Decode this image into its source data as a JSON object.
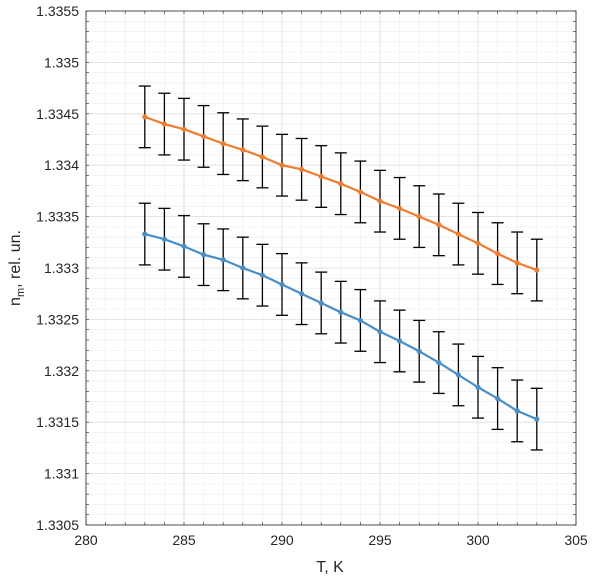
{
  "chart_data": {
    "type": "line",
    "title": "",
    "xlabel": "T, K",
    "ylabel_main": "n",
    "ylabel_sub": "m",
    "ylabel_rest": ", rel. un.",
    "xlim": [
      280,
      305
    ],
    "ylim": [
      1.3305,
      1.3355
    ],
    "xticks": [
      280,
      285,
      290,
      295,
      300,
      305
    ],
    "xtick_labels": [
      "280",
      "285",
      "290",
      "295",
      "300",
      "305"
    ],
    "yticks": [
      1.3305,
      1.331,
      1.3315,
      1.332,
      1.3325,
      1.333,
      1.3335,
      1.334,
      1.3345,
      1.335,
      1.3355
    ],
    "ytick_labels": [
      "1.3305",
      "1.331",
      "1.3315",
      "1.332",
      "1.3325",
      "1.333",
      "1.3335",
      "1.334",
      "1.3345",
      "1.335",
      "1.3355"
    ],
    "grid": true,
    "minor_grid": true,
    "x": [
      283,
      284,
      285,
      286,
      287,
      288,
      289,
      290,
      291,
      292,
      293,
      294,
      295,
      296,
      297,
      298,
      299,
      300,
      301,
      302,
      303
    ],
    "series": [
      {
        "color": "#ED7D31",
        "values": [
          1.33447,
          1.3344,
          1.33435,
          1.33428,
          1.33421,
          1.33415,
          1.33408,
          1.334,
          1.33396,
          1.33389,
          1.33382,
          1.33374,
          1.33365,
          1.33358,
          1.3335,
          1.33342,
          1.33333,
          1.33324,
          1.33314,
          1.33305,
          1.33298
        ],
        "error": 0.0003
      },
      {
        "color": "#4A8EC6",
        "values": [
          1.33333,
          1.33328,
          1.33321,
          1.33313,
          1.33308,
          1.333,
          1.33293,
          1.33284,
          1.33275,
          1.33266,
          1.33257,
          1.33249,
          1.33238,
          1.33229,
          1.33219,
          1.33208,
          1.33196,
          1.33184,
          1.33173,
          1.33161,
          1.33153
        ],
        "error": 0.0003
      }
    ],
    "errorbar_color": "#000000"
  }
}
